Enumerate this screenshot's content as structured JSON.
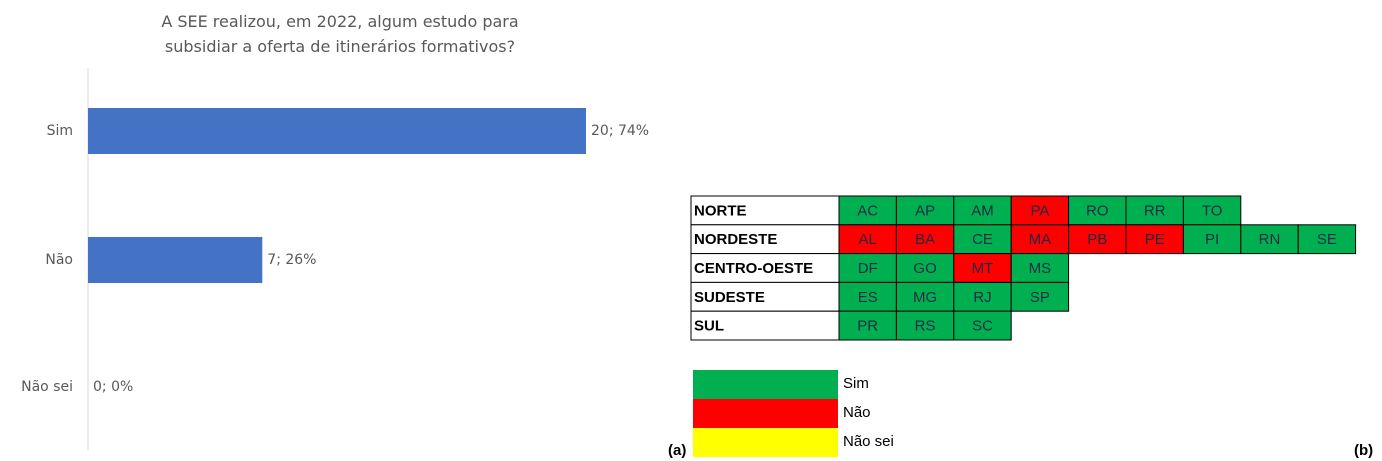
{
  "chart_data": {
    "type": "bar",
    "orientation": "horizontal",
    "title": "A SEE realizou, em 2022, algum estudo para subsidiar a oferta de itinerários formativos?",
    "categories": [
      "Sim",
      "Não",
      "Não sei"
    ],
    "values": [
      20,
      7,
      0
    ],
    "value_labels": [
      "20; 74%",
      "7; 26%",
      "0; 0%"
    ],
    "color": "#4472c4",
    "xlim": [
      0,
      20
    ]
  },
  "panel_labels": [
    "(a)",
    "(b)"
  ],
  "regions": [
    {
      "name": "NORTE",
      "states": [
        {
          "uf": "AC",
          "color": "#00b050"
        },
        {
          "uf": "AP",
          "color": "#00b050"
        },
        {
          "uf": "AM",
          "color": "#00b050"
        },
        {
          "uf": "PA",
          "color": "#ff0000"
        },
        {
          "uf": "RO",
          "color": "#00b050"
        },
        {
          "uf": "RR",
          "color": "#00b050"
        },
        {
          "uf": "TO",
          "color": "#00b050"
        }
      ]
    },
    {
      "name": "NORDESTE",
      "states": [
        {
          "uf": "AL",
          "color": "#ff0000"
        },
        {
          "uf": "BA",
          "color": "#ff0000"
        },
        {
          "uf": "CE",
          "color": "#00b050"
        },
        {
          "uf": "MA",
          "color": "#ff0000"
        },
        {
          "uf": "PB",
          "color": "#ff0000"
        },
        {
          "uf": "PE",
          "color": "#ff0000"
        },
        {
          "uf": "PI",
          "color": "#00b050"
        },
        {
          "uf": "RN",
          "color": "#00b050"
        },
        {
          "uf": "SE",
          "color": "#00b050"
        }
      ]
    },
    {
      "name": "CENTRO-OESTE",
      "states": [
        {
          "uf": "DF",
          "color": "#00b050"
        },
        {
          "uf": "GO",
          "color": "#00b050"
        },
        {
          "uf": "MT",
          "color": "#ff0000"
        },
        {
          "uf": "MS",
          "color": "#00b050"
        }
      ]
    },
    {
      "name": "SUDESTE",
      "states": [
        {
          "uf": "ES",
          "color": "#00b050"
        },
        {
          "uf": "MG",
          "color": "#00b050"
        },
        {
          "uf": "RJ",
          "color": "#00b050"
        },
        {
          "uf": "SP",
          "color": "#00b050"
        }
      ]
    },
    {
      "name": "SUL",
      "states": [
        {
          "uf": "PR",
          "color": "#00b050"
        },
        {
          "uf": "RS",
          "color": "#00b050"
        },
        {
          "uf": "SC",
          "color": "#00b050"
        }
      ]
    }
  ],
  "legend": [
    {
      "label": "Sim",
      "color": "#00b050"
    },
    {
      "label": "Não",
      "color": "#ff0000"
    },
    {
      "label": "Não sei",
      "color": "#ffff00"
    }
  ]
}
